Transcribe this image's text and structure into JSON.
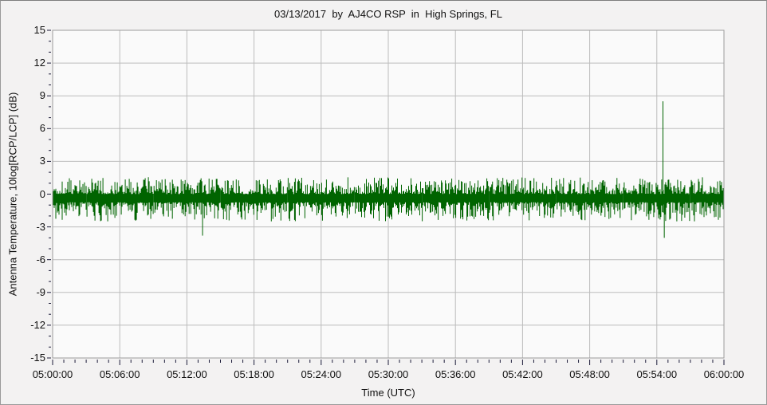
{
  "window": {
    "background_color": "#f3f2f2",
    "frame_border_color": "#9a9a9a"
  },
  "chart_data": {
    "type": "line",
    "title": "03/13/2017  by  AJ4CO RSP  in  High Springs, FL",
    "xlabel": "Time (UTC)",
    "ylabel": "Antenna Temperature, 10log[RCP/LCP] (dB)",
    "x_start_utc": "05:00:00",
    "x_end_utc": "06:00:00",
    "x_span_minutes": 60,
    "x_major_tick_interval_min": 6,
    "x_minor_tick_interval_min": 1,
    "x_tick_labels": [
      "05:00:00",
      "05:06:00",
      "05:12:00",
      "05:18:00",
      "05:24:00",
      "05:30:00",
      "05:36:00",
      "05:42:00",
      "05:48:00",
      "05:54:00",
      "06:00:00"
    ],
    "ylim": [
      -15,
      15
    ],
    "y_major_tick_interval_db": 3,
    "y_minor_tick_interval_db": 1,
    "y_tick_labels": [
      "15",
      "12",
      "9",
      "6",
      "3",
      "0",
      "-3",
      "-6",
      "-9",
      "-12",
      "-15"
    ],
    "grid": true,
    "legend": "none",
    "plot_bg_color": "#fafafa",
    "grid_color": "#bcbcbc",
    "axis_border_color": "#9c9c9c",
    "tick_color": "#1c1c3a",
    "series": [
      {
        "name": "10log[RCP/LCP]",
        "color": "#006400",
        "baseline_db": -0.35,
        "solid_band_db": [
          -0.95,
          0.45
        ],
        "typical_noise_extremes_db": [
          -2.6,
          1.2
        ],
        "samples": 842,
        "noise_seed": 1337
      }
    ],
    "events": [
      {
        "time_utc": "05:13:24",
        "peak_db": -3.8,
        "kind": "negative-spike"
      },
      {
        "time_utc": "05:54:33",
        "peak_db": 8.5,
        "kind": "positive-spike"
      },
      {
        "time_utc": "05:54:40",
        "peak_db": -4.0,
        "kind": "negative-spike"
      }
    ]
  }
}
